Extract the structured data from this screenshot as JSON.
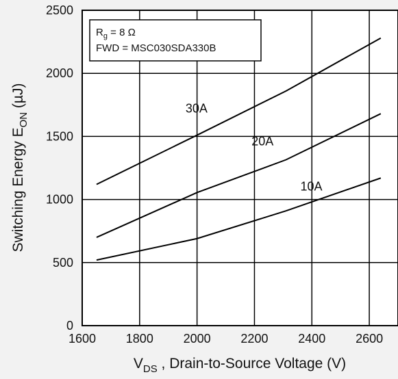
{
  "chart_data": {
    "type": "line",
    "xlabel": {
      "main": "V",
      "sub": "DS",
      "rest": " , Drain-to-Source Voltage (V)"
    },
    "ylabel": {
      "main": "Switching Energy E",
      "sub": "ON",
      "rest": " (µJ)"
    },
    "xlim": [
      1600,
      2700
    ],
    "ylim": [
      0,
      2500
    ],
    "xticks": [
      1600,
      1800,
      2000,
      2200,
      2400,
      2600
    ],
    "yticks": [
      0,
      500,
      1000,
      1500,
      2000,
      2500
    ],
    "grid": true,
    "legend_box": {
      "line1": {
        "main": "R",
        "sub": "g",
        "rest": " = 8 Ω"
      },
      "line2": "FWD = MSC030SDA330B",
      "placement": "top-left"
    },
    "series": [
      {
        "name": "30A",
        "x": [
          1650,
          2000,
          2310,
          2640
        ],
        "y": [
          1120,
          1510,
          1860,
          2280
        ],
        "label_at": [
          1960,
          1690
        ]
      },
      {
        "name": "20A",
        "x": [
          1650,
          2000,
          2310,
          2640
        ],
        "y": [
          700,
          1055,
          1315,
          1680
        ],
        "label_at": [
          2190,
          1430
        ]
      },
      {
        "name": "10A",
        "x": [
          1650,
          2000,
          2310,
          2640
        ],
        "y": [
          520,
          690,
          910,
          1170
        ],
        "label_at": [
          2360,
          1070
        ]
      }
    ],
    "colors": {
      "line": "#000000",
      "grid": "#000000",
      "background": "#f2f2f2",
      "plot_background": "#ffffff"
    }
  }
}
